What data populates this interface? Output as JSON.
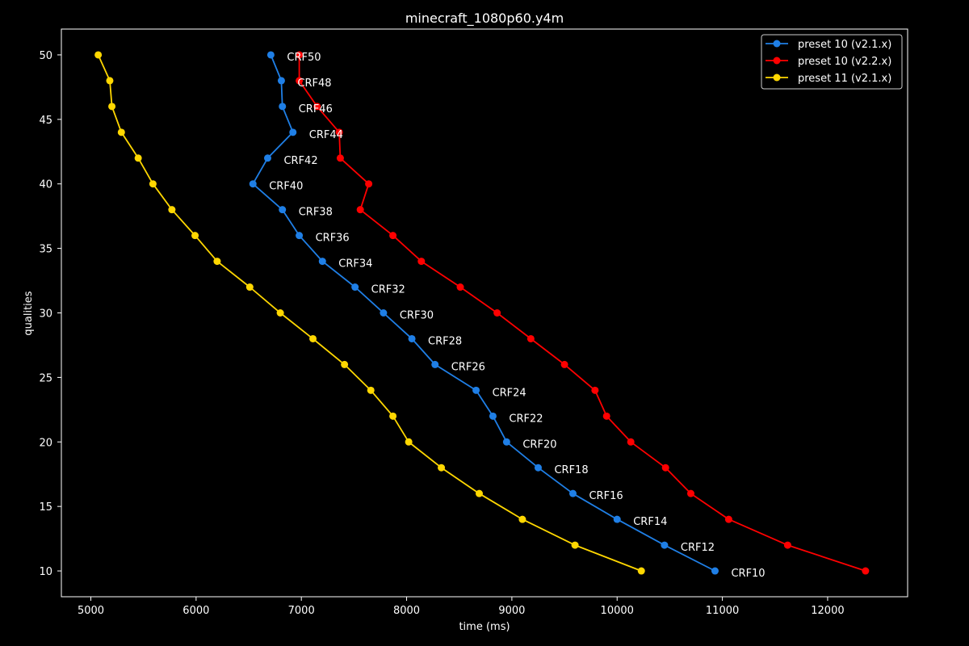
{
  "chart_data": {
    "type": "line",
    "title": "minecraft_1080p60.y4m",
    "xlabel": "time (ms)",
    "ylabel": "qualities",
    "xlim": [
      4720,
      12760
    ],
    "ylim": [
      8,
      52
    ],
    "xticks": [
      5000,
      6000,
      7000,
      8000,
      9000,
      10000,
      11000,
      12000
    ],
    "yticks": [
      10,
      15,
      20,
      25,
      30,
      35,
      40,
      45,
      50
    ],
    "grid": false,
    "legend_position": "top-right",
    "series": [
      {
        "name": "preset 10 (v2.1.x)",
        "color": "#1f7fe6",
        "points": [
          {
            "x": 6710,
            "y": 50,
            "label": "CRF50"
          },
          {
            "x": 6810,
            "y": 48,
            "label": "CRF48"
          },
          {
            "x": 6820,
            "y": 46,
            "label": "CRF46"
          },
          {
            "x": 6920,
            "y": 44,
            "label": "CRF44"
          },
          {
            "x": 6680,
            "y": 42,
            "label": "CRF42"
          },
          {
            "x": 6540,
            "y": 40,
            "label": "CRF40"
          },
          {
            "x": 6820,
            "y": 38,
            "label": "CRF38"
          },
          {
            "x": 6980,
            "y": 36,
            "label": "CRF36"
          },
          {
            "x": 7200,
            "y": 34,
            "label": "CRF34"
          },
          {
            "x": 7510,
            "y": 32,
            "label": "CRF32"
          },
          {
            "x": 7780,
            "y": 30,
            "label": "CRF30"
          },
          {
            "x": 8050,
            "y": 28,
            "label": "CRF28"
          },
          {
            "x": 8270,
            "y": 26,
            "label": "CRF26"
          },
          {
            "x": 8660,
            "y": 24,
            "label": "CRF24"
          },
          {
            "x": 8820,
            "y": 22,
            "label": "CRF22"
          },
          {
            "x": 8950,
            "y": 20,
            "label": "CRF20"
          },
          {
            "x": 9250,
            "y": 18,
            "label": "CRF18"
          },
          {
            "x": 9580,
            "y": 16,
            "label": "CRF16"
          },
          {
            "x": 10000,
            "y": 14,
            "label": "CRF14"
          },
          {
            "x": 10450,
            "y": 12,
            "label": "CRF12"
          },
          {
            "x": 10930,
            "y": 10,
            "label": "CRF10"
          }
        ]
      },
      {
        "name": "preset 10 (v2.2.x)",
        "color": "#ff0000",
        "points": [
          {
            "x": 6980,
            "y": 50
          },
          {
            "x": 6980,
            "y": 48
          },
          {
            "x": 7150,
            "y": 46
          },
          {
            "x": 7360,
            "y": 44
          },
          {
            "x": 7370,
            "y": 42
          },
          {
            "x": 7640,
            "y": 40
          },
          {
            "x": 7560,
            "y": 38
          },
          {
            "x": 7870,
            "y": 36
          },
          {
            "x": 8140,
            "y": 34
          },
          {
            "x": 8510,
            "y": 32
          },
          {
            "x": 8860,
            "y": 30
          },
          {
            "x": 9180,
            "y": 28
          },
          {
            "x": 9500,
            "y": 26
          },
          {
            "x": 9790,
            "y": 24
          },
          {
            "x": 9900,
            "y": 22
          },
          {
            "x": 10130,
            "y": 20
          },
          {
            "x": 10460,
            "y": 18
          },
          {
            "x": 10700,
            "y": 16
          },
          {
            "x": 11060,
            "y": 14
          },
          {
            "x": 11620,
            "y": 12
          },
          {
            "x": 12360,
            "y": 10
          }
        ]
      },
      {
        "name": "preset 11 (v2.1.x)",
        "color": "#ffd700",
        "points": [
          {
            "x": 5070,
            "y": 50
          },
          {
            "x": 5180,
            "y": 48
          },
          {
            "x": 5200,
            "y": 46
          },
          {
            "x": 5290,
            "y": 44
          },
          {
            "x": 5450,
            "y": 42
          },
          {
            "x": 5590,
            "y": 40
          },
          {
            "x": 5770,
            "y": 38
          },
          {
            "x": 5990,
            "y": 36
          },
          {
            "x": 6200,
            "y": 34
          },
          {
            "x": 6510,
            "y": 32
          },
          {
            "x": 6800,
            "y": 30
          },
          {
            "x": 7110,
            "y": 28
          },
          {
            "x": 7410,
            "y": 26
          },
          {
            "x": 7660,
            "y": 24
          },
          {
            "x": 7870,
            "y": 22
          },
          {
            "x": 8020,
            "y": 20
          },
          {
            "x": 8330,
            "y": 18
          },
          {
            "x": 8690,
            "y": 16
          },
          {
            "x": 9100,
            "y": 14
          },
          {
            "x": 9600,
            "y": 12
          },
          {
            "x": 10230,
            "y": 10
          }
        ]
      }
    ]
  }
}
